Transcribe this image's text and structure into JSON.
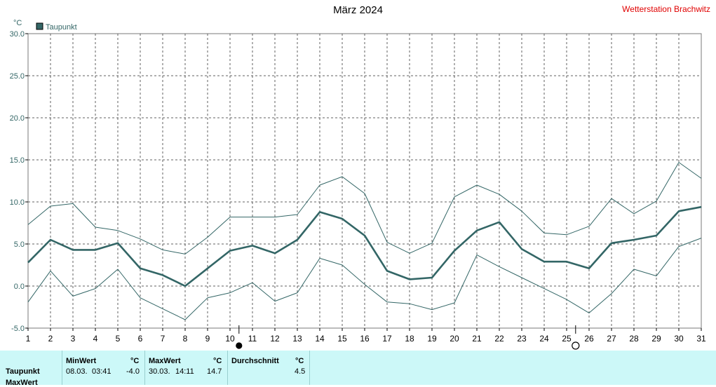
{
  "header": {
    "title": "März 2024",
    "station": "Wetterstation Brachwitz"
  },
  "colors": {
    "series": "#336666",
    "station_text": "#e00000",
    "stats_bg": "#ccf8f8"
  },
  "chart_data": {
    "type": "line",
    "ylabel": "°C",
    "ylim": [
      -5.0,
      30.0
    ],
    "y_ticks": [
      "-5.0",
      "0.0",
      "5.0",
      "10.0",
      "15.0",
      "20.0",
      "25.0",
      "30.0"
    ],
    "x_ticks": [
      "1",
      "2",
      "3",
      "4",
      "5",
      "6",
      "7",
      "8",
      "9",
      "10",
      "11",
      "12",
      "13",
      "14",
      "15",
      "16",
      "17",
      "18",
      "19",
      "20",
      "21",
      "22",
      "23",
      "24",
      "25",
      "26",
      "27",
      "28",
      "29",
      "30",
      "31"
    ],
    "x": [
      1,
      2,
      3,
      4,
      5,
      6,
      7,
      8,
      9,
      10,
      11,
      12,
      13,
      14,
      15,
      16,
      17,
      18,
      19,
      20,
      21,
      22,
      23,
      24,
      25,
      26,
      27,
      28,
      29,
      30,
      31
    ],
    "grid": true,
    "legend": "top-left",
    "series": [
      {
        "name": "Taupunkt",
        "role": "mean",
        "values": [
          2.8,
          5.5,
          4.3,
          4.3,
          5.1,
          2.1,
          1.3,
          0.0,
          2.1,
          4.2,
          4.8,
          3.9,
          5.5,
          8.8,
          8.0,
          6.0,
          1.8,
          0.8,
          1.0,
          4.2,
          6.6,
          7.6,
          4.4,
          2.9,
          2.9,
          2.1,
          5.1,
          5.5,
          6.0,
          8.9,
          9.4
        ]
      },
      {
        "role": "max",
        "values": [
          7.3,
          9.5,
          9.8,
          7.0,
          6.6,
          5.6,
          4.3,
          3.8,
          5.8,
          8.2,
          8.2,
          8.2,
          8.5,
          12.0,
          13.0,
          11.0,
          5.2,
          3.9,
          5.1,
          10.6,
          12.0,
          10.9,
          8.9,
          6.3,
          6.1,
          7.1,
          10.4,
          8.6,
          10.1,
          14.7,
          12.8
        ]
      },
      {
        "role": "min",
        "values": [
          -1.9,
          1.8,
          -1.2,
          -0.3,
          2.0,
          -1.4,
          -2.7,
          -4.0,
          -1.4,
          -0.8,
          0.4,
          -1.8,
          -0.8,
          3.3,
          2.5,
          0.2,
          -1.9,
          -2.1,
          -2.8,
          -2.0,
          3.7,
          2.3,
          1.0,
          -0.3,
          -1.6,
          -3.2,
          -0.9,
          2.0,
          1.2,
          4.7,
          5.7
        ]
      }
    ],
    "markers": [
      {
        "day": 10.4,
        "symbol": "full-moon"
      },
      {
        "day": 25.4,
        "symbol": "new-moon"
      }
    ]
  },
  "stats": {
    "row_label_1": "Taupunkt",
    "row_label_2": "MaxWert",
    "min_header": "MinWert",
    "min_unit": "°C",
    "min_date": "08.03.",
    "min_time": "03:41",
    "min_value": "-4.0",
    "max_header": "MaxWert",
    "max_unit": "°C",
    "max_date": "30.03.",
    "max_time": "14:11",
    "max_value": "14.7",
    "avg_header": "Durchschnitt",
    "avg_unit": "°C",
    "avg_value": "4.5"
  }
}
